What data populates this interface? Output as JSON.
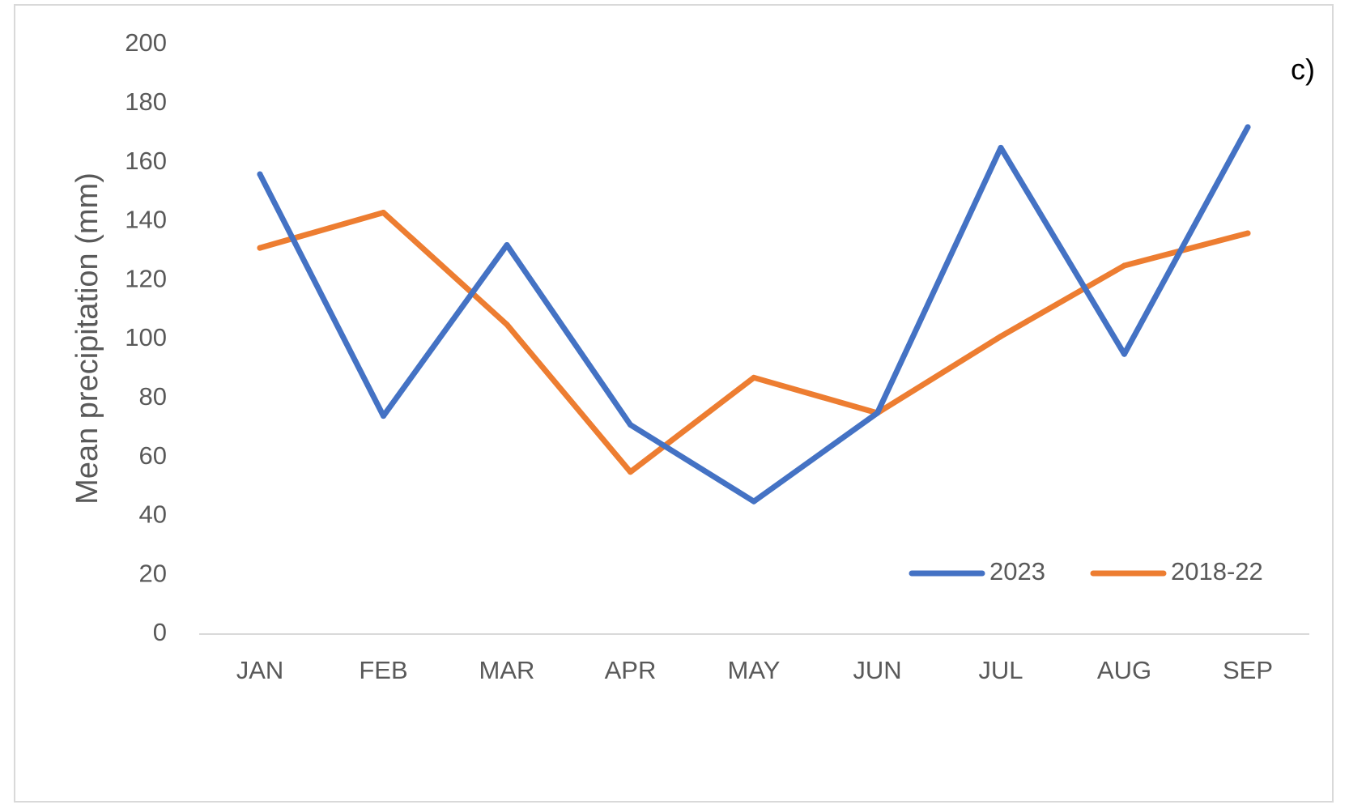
{
  "chart_data": {
    "type": "line",
    "panel_label": "c)",
    "title": "",
    "xlabel": "",
    "ylabel": "Mean precipitation (mm)",
    "categories": [
      "JAN",
      "FEB",
      "MAR",
      "APR",
      "MAY",
      "JUN",
      "JUL",
      "AUG",
      "SEP"
    ],
    "ylim": [
      0,
      200
    ],
    "yticks": [
      0,
      20,
      40,
      60,
      80,
      100,
      120,
      140,
      160,
      180,
      200
    ],
    "grid": false,
    "legend_position": "bottom-right",
    "series": [
      {
        "name": "2023",
        "color": "#4472c4",
        "values": [
          156,
          74,
          132,
          71,
          45,
          75,
          165,
          95,
          172
        ]
      },
      {
        "name": "2018-22",
        "color": "#ed7d31",
        "values": [
          131,
          143,
          105,
          55,
          87,
          75,
          101,
          125,
          136
        ]
      }
    ]
  }
}
